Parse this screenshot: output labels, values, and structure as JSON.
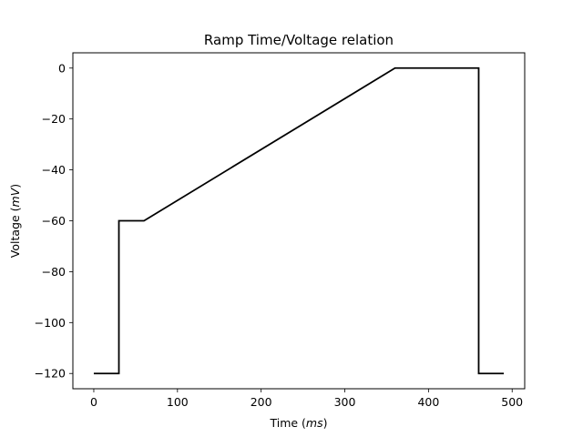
{
  "chart_data": {
    "type": "line",
    "title": "Ramp Time/Voltage relation",
    "xlabel": {
      "prefix": "Time (",
      "unit": "ms",
      "suffix": ")"
    },
    "ylabel": {
      "prefix": "Voltage (",
      "unit": "mV",
      "suffix": ")"
    },
    "xlim": [
      -25,
      515
    ],
    "ylim": [
      -126,
      6
    ],
    "x_ticks": [
      0,
      100,
      200,
      300,
      400,
      500
    ],
    "x_tick_labels": [
      "0",
      "100",
      "200",
      "300",
      "400",
      "500"
    ],
    "y_ticks": [
      0,
      -20,
      -40,
      -60,
      -80,
      -100,
      -120
    ],
    "y_tick_labels": [
      "0",
      "−20",
      "−40",
      "−60",
      "−80",
      "−100",
      "−120"
    ],
    "grid": false,
    "series": [
      {
        "color": "#000000",
        "x": [
          0,
          30,
          30,
          60,
          360,
          460,
          460,
          490
        ],
        "y": [
          -120,
          -120,
          -60,
          -60,
          0,
          0,
          -120,
          -120
        ]
      }
    ]
  }
}
